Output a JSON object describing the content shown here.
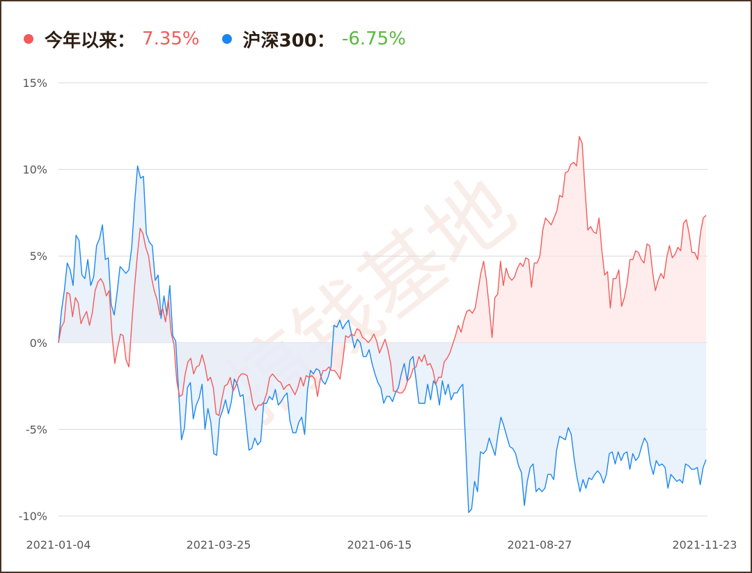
{
  "legend": {
    "items": [
      {
        "name": "今年以来",
        "colon": "：",
        "value": "7.35%",
        "dot_color": "#f25a5a",
        "value_color": "#f25a5a"
      },
      {
        "name": "沪深300",
        "colon": "：",
        "value": "-6.75%",
        "dot_color": "#1a86f0",
        "value_color": "#57b93a"
      }
    ]
  },
  "watermark": "搞钱基地",
  "chart_data": {
    "type": "area",
    "y_ticks": [
      "15%",
      "10%",
      "5%",
      "0%",
      "-5%",
      "-10%"
    ],
    "ylim": [
      -10,
      15
    ],
    "x_ticks": [
      "2021-01-04",
      "2021-03-25",
      "2021-06-15",
      "2021-08-27",
      "2021-11-23"
    ],
    "grid": true,
    "legend_position": "top-left",
    "series": [
      {
        "name": "今年以来",
        "color": "#f25a5a",
        "fill": "#fde6e4",
        "final": 7.35,
        "values": [
          0.0,
          0.9,
          1.2,
          2.9,
          2.8,
          1.5,
          2.6,
          2.3,
          1.1,
          1.5,
          1.8,
          1.0,
          1.7,
          3.0,
          3.5,
          3.7,
          3.4,
          2.7,
          3.0,
          0.5,
          -1.2,
          -0.3,
          0.5,
          0.4,
          -1.0,
          -1.4,
          1.0,
          3.2,
          5.0,
          6.6,
          6.3,
          5.5,
          5.0,
          3.8,
          3.0,
          2.5,
          1.6,
          2.0,
          1.2,
          2.5,
          0.6,
          -0.1,
          -2.2,
          -3.1,
          -3.0,
          -1.8,
          -1.1,
          -0.9,
          -1.8,
          -1.4,
          -1.3,
          -0.7,
          -1.3,
          -2.2,
          -2.0,
          -2.6,
          -4.1,
          -4.2,
          -3.3,
          -2.5,
          -2.4,
          -2.0,
          -2.8,
          -2.5,
          -2.0,
          -1.8,
          -1.8,
          -1.9,
          -2.6,
          -3.5,
          -3.9,
          -3.6,
          -3.6,
          -3.4,
          -2.9,
          -2.0,
          -1.8,
          -2.0,
          -2.2,
          -2.3,
          -2.7,
          -2.5,
          -2.4,
          -2.7,
          -3.0,
          -2.6,
          -2.0,
          -2.5,
          -1.9,
          -2.0,
          -1.9,
          -2.1,
          -3.1,
          -2.1,
          -1.6,
          -1.6,
          -1.4,
          -1.6,
          -1.6,
          -1.8,
          -2.1,
          -1.0,
          0.4,
          0.3,
          0.5,
          0.4,
          0.8,
          0.7,
          0.3,
          0.2,
          0.0,
          0.2,
          0.5,
          0.1,
          -0.6,
          -0.2,
          0.2,
          -0.4,
          -1.2,
          -2.8,
          -2.8,
          -2.9,
          -2.9,
          -2.7,
          -2.2,
          -2.0,
          -1.5,
          -1.4,
          -0.8,
          -1.1,
          -0.7,
          -1.3,
          -1.2,
          -1.6,
          -2.4,
          -2.0,
          -2.0,
          -1.1,
          -0.9,
          -0.6,
          -0.1,
          0.4,
          1.0,
          0.6,
          1.3,
          1.8,
          1.9,
          1.7,
          2.0,
          3.0,
          4.0,
          4.7,
          3.6,
          2.0,
          0.3,
          2.6,
          2.8,
          4.7,
          3.3,
          4.3,
          3.8,
          3.6,
          3.8,
          4.3,
          4.6,
          4.4,
          4.9,
          4.8,
          3.2,
          4.6,
          4.6,
          5.0,
          6.5,
          7.2,
          7.0,
          6.8,
          7.2,
          7.6,
          8.5,
          8.4,
          9.8,
          9.9,
          10.3,
          10.4,
          10.2,
          11.9,
          11.5,
          8.9,
          6.5,
          6.7,
          6.4,
          6.3,
          7.2,
          5.3,
          3.9,
          4.1,
          2.0,
          3.7,
          3.7,
          4.2,
          2.1,
          2.6,
          3.5,
          4.8,
          4.8,
          5.3,
          5.2,
          4.8,
          4.6,
          5.7,
          5.6,
          4.1,
          3.0,
          3.6,
          4.0,
          3.7,
          4.9,
          5.6,
          4.9,
          5.1,
          5.5,
          5.3,
          6.9,
          7.1,
          6.3,
          5.2,
          5.2,
          4.8,
          6.3,
          7.2,
          7.35
        ]
      },
      {
        "name": "沪深300",
        "color": "#1a86f0",
        "fill": "#e3eefb",
        "final": -6.75,
        "values": [
          0.0,
          1.8,
          3.0,
          4.6,
          4.2,
          3.3,
          6.2,
          5.9,
          3.9,
          3.7,
          4.8,
          3.3,
          3.8,
          5.6,
          6.0,
          6.8,
          4.8,
          4.9,
          2.2,
          1.6,
          2.9,
          4.4,
          4.2,
          4.0,
          4.2,
          5.5,
          8.1,
          10.2,
          9.5,
          9.6,
          6.3,
          5.8,
          5.6,
          3.6,
          3.9,
          1.4,
          2.7,
          1.6,
          3.3,
          0.4,
          0.1,
          -2.8,
          -5.6,
          -4.9,
          -2.6,
          -2.3,
          -4.4,
          -3.6,
          -3.2,
          -2.4,
          -5.0,
          -3.8,
          -4.6,
          -6.4,
          -6.5,
          -4.4,
          -3.9,
          -3.3,
          -4.1,
          -3.4,
          -2.1,
          -2.4,
          -3.1,
          -3.0,
          -4.6,
          -6.2,
          -6.1,
          -5.5,
          -5.9,
          -5.7,
          -3.5,
          -3.5,
          -3.1,
          -3.3,
          -2.7,
          -3.6,
          -3.4,
          -3.1,
          -2.9,
          -4.5,
          -5.2,
          -5.2,
          -4.6,
          -4.3,
          -5.3,
          -2.7,
          -1.6,
          -1.8,
          -1.5,
          -1.6,
          -2.2,
          -2.4,
          -2.0,
          -1.4,
          1.0,
          0.9,
          1.3,
          0.8,
          1.1,
          1.3,
          0.5,
          -0.3,
          0.2,
          0.0,
          -0.8,
          -0.8,
          -0.4,
          -1.2,
          -1.8,
          -2.3,
          -2.6,
          -3.5,
          -3.1,
          -3.1,
          -3.4,
          -2.9,
          -2.6,
          -1.8,
          -1.2,
          -2.2,
          -1.0,
          -0.8,
          -2.1,
          -3.5,
          -3.5,
          -3.5,
          -2.4,
          -3.3,
          -2.2,
          -2.5,
          -3.6,
          -2.2,
          -3.0,
          -2.4,
          -3.3,
          -2.9,
          -2.9,
          -2.6,
          -2.4,
          -6.0,
          -9.8,
          -9.6,
          -8.0,
          -8.6,
          -6.3,
          -6.4,
          -6.2,
          -5.5,
          -6.0,
          -6.5,
          -5.3,
          -4.3,
          -4.8,
          -5.4,
          -6.0,
          -6.1,
          -6.4,
          -7.1,
          -7.5,
          -9.4,
          -8.0,
          -7.2,
          -7.0,
          -8.6,
          -8.4,
          -8.6,
          -8.4,
          -7.6,
          -7.6,
          -7.9,
          -6.2,
          -5.4,
          -5.5,
          -5.6,
          -4.9,
          -5.3,
          -6.7,
          -7.8,
          -8.6,
          -7.9,
          -8.4,
          -7.8,
          -7.9,
          -7.6,
          -7.4,
          -7.6,
          -8.1,
          -7.6,
          -6.4,
          -6.3,
          -7.0,
          -6.3,
          -6.8,
          -6.4,
          -6.3,
          -7.3,
          -6.4,
          -6.8,
          -6.6,
          -6.0,
          -5.5,
          -5.8,
          -7.0,
          -7.6,
          -6.8,
          -7.1,
          -7.0,
          -7.2,
          -8.4,
          -7.6,
          -7.8,
          -8.0,
          -7.9,
          -8.1,
          -7.0,
          -7.1,
          -7.3,
          -7.3,
          -7.2,
          -8.2,
          -7.2,
          -6.75
        ]
      }
    ]
  }
}
